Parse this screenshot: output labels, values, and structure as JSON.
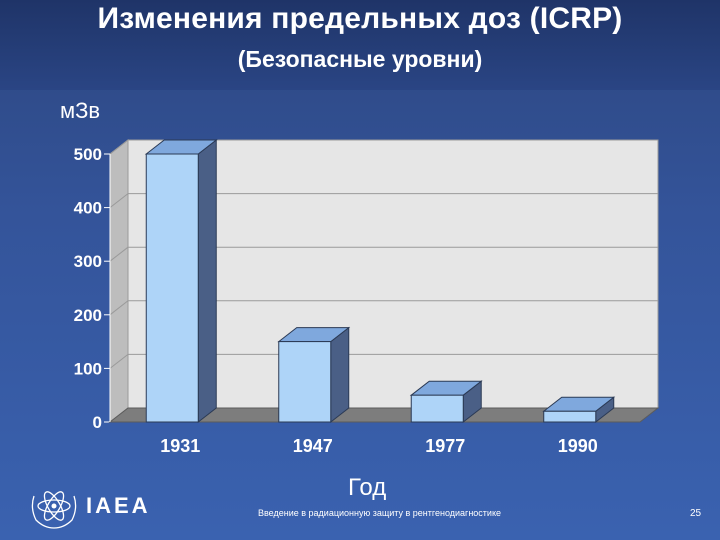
{
  "slide": {
    "title": "Изменения предельных доз (ICRP)",
    "subtitle": "(Безопасные уровни)",
    "footer": "Введение в радиационную защиту в рентгенодиагностике",
    "page_number": "25",
    "logo_text": "IAEA"
  },
  "chart_data": {
    "type": "bar",
    "title": "",
    "categories": [
      "1931",
      "1947",
      "1977",
      "1990"
    ],
    "values": [
      500,
      150,
      50,
      20
    ],
    "xlabel": "Год",
    "ylabel": "мЗв",
    "ylim": [
      0,
      500
    ],
    "yticks": [
      "0",
      "100",
      "200",
      "300",
      "400",
      "500"
    ],
    "grid": true,
    "colors": {
      "bar_front": "#aed4f8",
      "bar_side": "#4a5f86",
      "bar_top": "#7fa8dd",
      "floor": "#7d7d7d",
      "wall": "#e6e6e6"
    }
  }
}
